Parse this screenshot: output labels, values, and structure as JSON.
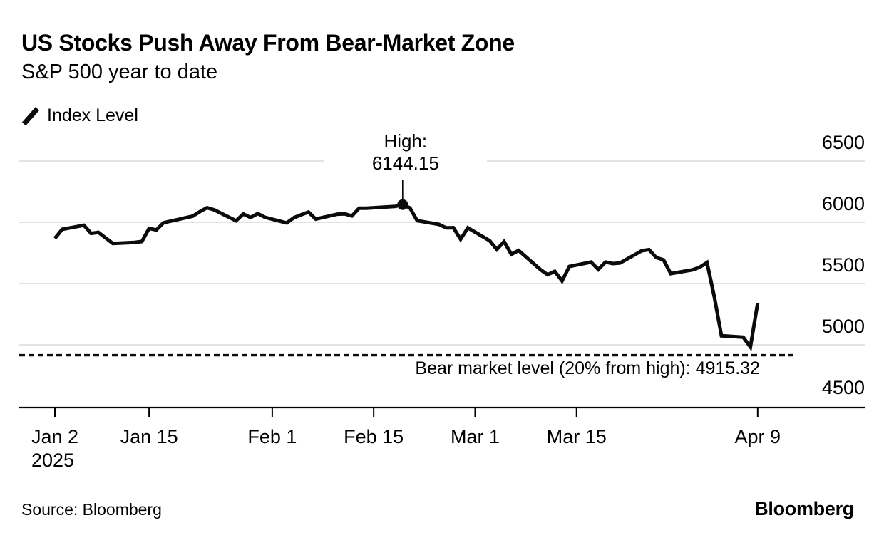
{
  "header": {
    "title": "US Stocks Push Away From Bear-Market Zone",
    "subtitle": "S&P 500 year to date"
  },
  "legend": {
    "label": "Index Level"
  },
  "footer": {
    "source": "Source: Bloomberg",
    "logo": "Bloomberg"
  },
  "colors": {
    "line": "#0b0b0b",
    "grid": "#d9d9d9",
    "axis": "#000000",
    "dashed_line": "#0d0d0d",
    "text": "#000000",
    "background": "#ffffff"
  },
  "chart_data": {
    "type": "line",
    "title": "US Stocks Push Away From Bear-Market Zone",
    "subtitle": "S&P 500 year to date",
    "series_name": "Index Level",
    "xlabel": "",
    "ylabel": "",
    "ylim": [
      4490,
      6510
    ],
    "grid": "horizontal",
    "legend_position": "top-left",
    "y_ticks": [
      {
        "value": 6500,
        "label": "6500"
      },
      {
        "value": 6000,
        "label": "6000"
      },
      {
        "value": 5500,
        "label": "5500"
      },
      {
        "value": 5000,
        "label": "5000"
      },
      {
        "value": 4500,
        "label": "4500"
      }
    ],
    "x_ticks": [
      {
        "date": "2025-01-02",
        "label": "Jan 2",
        "year_label": "2025"
      },
      {
        "date": "2025-01-15",
        "label": "Jan 15"
      },
      {
        "date": "2025-02-01",
        "label": "Feb 1"
      },
      {
        "date": "2025-02-15",
        "label": "Feb 15"
      },
      {
        "date": "2025-03-01",
        "label": "Mar 1"
      },
      {
        "date": "2025-03-15",
        "label": "Mar 15"
      },
      {
        "date": "2025-04-09",
        "label": "Apr 9"
      }
    ],
    "high_point": {
      "date": "2025-02-19",
      "value": 6144.15,
      "label": "High:",
      "value_label": "6144.15"
    },
    "bear_line": {
      "value": 4915.32,
      "label": "Bear market level (20% from high): 4915.32"
    },
    "points": [
      {
        "date": "2025-01-02",
        "value": 5868.55
      },
      {
        "date": "2025-01-03",
        "value": 5942.47
      },
      {
        "date": "2025-01-06",
        "value": 5975.38
      },
      {
        "date": "2025-01-07",
        "value": 5909.03
      },
      {
        "date": "2025-01-08",
        "value": 5918.25
      },
      {
        "date": "2025-01-10",
        "value": 5827.04
      },
      {
        "date": "2025-01-13",
        "value": 5836.22
      },
      {
        "date": "2025-01-14",
        "value": 5842.91
      },
      {
        "date": "2025-01-15",
        "value": 5949.91
      },
      {
        "date": "2025-01-16",
        "value": 5937.34
      },
      {
        "date": "2025-01-17",
        "value": 5996.66
      },
      {
        "date": "2025-01-21",
        "value": 6049.24
      },
      {
        "date": "2025-01-22",
        "value": 6086.37
      },
      {
        "date": "2025-01-23",
        "value": 6118.71
      },
      {
        "date": "2025-01-24",
        "value": 6101.24
      },
      {
        "date": "2025-01-27",
        "value": 6012.28
      },
      {
        "date": "2025-01-28",
        "value": 6067.7
      },
      {
        "date": "2025-01-29",
        "value": 6039.31
      },
      {
        "date": "2025-01-30",
        "value": 6071.17
      },
      {
        "date": "2025-01-31",
        "value": 6040.53
      },
      {
        "date": "2025-02-03",
        "value": 5994.57
      },
      {
        "date": "2025-02-04",
        "value": 6037.88
      },
      {
        "date": "2025-02-05",
        "value": 6061.48
      },
      {
        "date": "2025-02-06",
        "value": 6083.57
      },
      {
        "date": "2025-02-07",
        "value": 6025.99
      },
      {
        "date": "2025-02-10",
        "value": 6066.44
      },
      {
        "date": "2025-02-11",
        "value": 6068.5
      },
      {
        "date": "2025-02-12",
        "value": 6051.97
      },
      {
        "date": "2025-02-13",
        "value": 6115.07
      },
      {
        "date": "2025-02-14",
        "value": 6114.63
      },
      {
        "date": "2025-02-18",
        "value": 6129.58
      },
      {
        "date": "2025-02-19",
        "value": 6144.15
      },
      {
        "date": "2025-02-20",
        "value": 6117.52
      },
      {
        "date": "2025-02-21",
        "value": 6013.13
      },
      {
        "date": "2025-02-24",
        "value": 5983.25
      },
      {
        "date": "2025-02-25",
        "value": 5955.25
      },
      {
        "date": "2025-02-26",
        "value": 5956.06
      },
      {
        "date": "2025-02-27",
        "value": 5861.57
      },
      {
        "date": "2025-02-28",
        "value": 5954.5
      },
      {
        "date": "2025-03-03",
        "value": 5849.72
      },
      {
        "date": "2025-03-04",
        "value": 5778.15
      },
      {
        "date": "2025-03-05",
        "value": 5842.63
      },
      {
        "date": "2025-03-06",
        "value": 5738.52
      },
      {
        "date": "2025-03-07",
        "value": 5770.2
      },
      {
        "date": "2025-03-10",
        "value": 5614.56
      },
      {
        "date": "2025-03-11",
        "value": 5572.07
      },
      {
        "date": "2025-03-12",
        "value": 5599.3
      },
      {
        "date": "2025-03-13",
        "value": 5521.52
      },
      {
        "date": "2025-03-14",
        "value": 5638.94
      },
      {
        "date": "2025-03-17",
        "value": 5675.12
      },
      {
        "date": "2025-03-18",
        "value": 5614.66
      },
      {
        "date": "2025-03-19",
        "value": 5675.29
      },
      {
        "date": "2025-03-20",
        "value": 5662.89
      },
      {
        "date": "2025-03-21",
        "value": 5667.56
      },
      {
        "date": "2025-03-24",
        "value": 5767.57
      },
      {
        "date": "2025-03-25",
        "value": 5776.65
      },
      {
        "date": "2025-03-26",
        "value": 5712.2
      },
      {
        "date": "2025-03-27",
        "value": 5693.31
      },
      {
        "date": "2025-03-28",
        "value": 5580.94
      },
      {
        "date": "2025-03-31",
        "value": 5611.85
      },
      {
        "date": "2025-04-01",
        "value": 5633.07
      },
      {
        "date": "2025-04-02",
        "value": 5670.97
      },
      {
        "date": "2025-04-03",
        "value": 5396.52
      },
      {
        "date": "2025-04-04",
        "value": 5074.08
      },
      {
        "date": "2025-04-07",
        "value": 5062.25
      },
      {
        "date": "2025-04-08",
        "value": 4982.77
      },
      {
        "date": "2025-04-09",
        "value": 5340.0
      }
    ]
  }
}
